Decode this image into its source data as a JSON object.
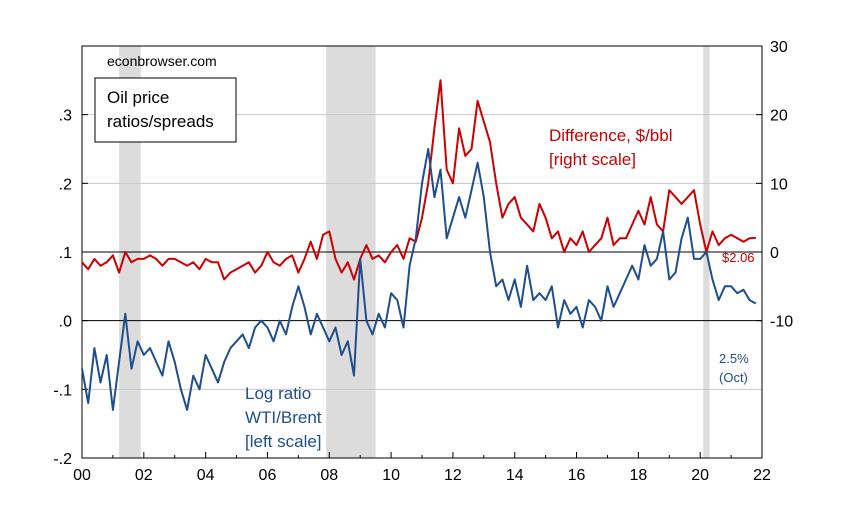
{
  "chart_data": {
    "type": "line",
    "title": "",
    "watermark": "econbrowser.com",
    "legend_box": {
      "line1": "Oil price",
      "line2": "ratios/spreads"
    },
    "x_range": [
      2000,
      2022
    ],
    "x_tick_labels": [
      "00",
      "02",
      "04",
      "06",
      "08",
      "10",
      "12",
      "14",
      "16",
      "18",
      "20",
      "22"
    ],
    "y_left": {
      "range": [
        -0.2,
        0.4
      ],
      "tick_labels": [
        "-.2",
        "-.1",
        ".0",
        ".1",
        ".2",
        ".3"
      ]
    },
    "y_right": {
      "range": [
        -30,
        30
      ],
      "tick_labels": [
        "-10",
        "0",
        "10",
        "20",
        "30"
      ]
    },
    "grid": true,
    "recessions": [
      [
        2001.2,
        2001.9
      ],
      [
        2007.9,
        2009.5
      ],
      [
        2020.1,
        2020.3
      ]
    ],
    "series": [
      {
        "name": "Difference, $/bbl",
        "label_lines": [
          "Difference, $/bbl",
          "[right scale]"
        ],
        "axis": "right",
        "color": "#cc0000",
        "x": [
          2000.0,
          2000.2,
          2000.4,
          2000.6,
          2000.8,
          2001.0,
          2001.2,
          2001.4,
          2001.6,
          2001.8,
          2002.0,
          2002.2,
          2002.4,
          2002.6,
          2002.8,
          2003.0,
          2003.2,
          2003.4,
          2003.6,
          2003.8,
          2004.0,
          2004.2,
          2004.4,
          2004.6,
          2004.8,
          2005.0,
          2005.2,
          2005.4,
          2005.6,
          2005.8,
          2006.0,
          2006.2,
          2006.4,
          2006.6,
          2006.8,
          2007.0,
          2007.2,
          2007.4,
          2007.6,
          2007.8,
          2008.0,
          2008.2,
          2008.4,
          2008.6,
          2008.8,
          2009.0,
          2009.2,
          2009.4,
          2009.6,
          2009.8,
          2010.0,
          2010.2,
          2010.4,
          2010.6,
          2010.8,
          2011.0,
          2011.2,
          2011.4,
          2011.6,
          2011.8,
          2012.0,
          2012.2,
          2012.4,
          2012.6,
          2012.8,
          2013.0,
          2013.2,
          2013.4,
          2013.6,
          2013.8,
          2014.0,
          2014.2,
          2014.4,
          2014.6,
          2014.8,
          2015.0,
          2015.2,
          2015.4,
          2015.6,
          2015.8,
          2016.0,
          2016.2,
          2016.4,
          2016.6,
          2016.8,
          2017.0,
          2017.2,
          2017.4,
          2017.6,
          2017.8,
          2018.0,
          2018.2,
          2018.4,
          2018.6,
          2018.8,
          2019.0,
          2019.2,
          2019.4,
          2019.6,
          2019.8,
          2020.0,
          2020.2,
          2020.4,
          2020.6,
          2020.8,
          2021.0,
          2021.2,
          2021.4,
          2021.6,
          2021.8
        ],
        "values": [
          -1.5,
          -2.5,
          -1,
          -2,
          -1.5,
          -0.5,
          -3,
          0,
          -1.5,
          -1,
          -1,
          -0.5,
          -1,
          -2,
          -1,
          -1,
          -1.5,
          -2,
          -1.5,
          -2.5,
          -1,
          -1.5,
          -1.5,
          -4,
          -3,
          -2.5,
          -2,
          -1.5,
          -3,
          -2,
          0,
          -1.5,
          -2,
          -1,
          -0.5,
          -3,
          -1,
          1.5,
          -1,
          2.5,
          3,
          -1,
          -3,
          -1.5,
          -4,
          -1,
          1,
          -1,
          -0.5,
          -1.5,
          0,
          1,
          -1,
          2,
          1.5,
          5,
          10,
          18,
          25,
          12,
          10,
          18,
          14,
          15,
          22,
          19,
          16,
          10,
          5,
          7,
          8,
          5,
          4,
          3,
          7,
          5,
          2,
          3,
          0,
          2,
          1,
          3,
          0,
          1,
          2,
          5,
          1,
          2,
          2,
          4,
          6,
          4,
          8,
          4,
          3,
          9,
          8,
          7,
          8,
          9,
          4,
          0,
          3,
          1,
          2,
          2.5,
          2,
          1.5,
          2,
          2.06
        ]
      },
      {
        "name": "Log ratio WTI/Brent",
        "label_lines": [
          "Log ratio",
          "WTI/Brent",
          "[left scale]"
        ],
        "axis": "left",
        "color": "#1f4e8c",
        "x": [
          2000.0,
          2000.2,
          2000.4,
          2000.6,
          2000.8,
          2001.0,
          2001.2,
          2001.4,
          2001.6,
          2001.8,
          2002.0,
          2002.2,
          2002.4,
          2002.6,
          2002.8,
          2003.0,
          2003.2,
          2003.4,
          2003.6,
          2003.8,
          2004.0,
          2004.2,
          2004.4,
          2004.6,
          2004.8,
          2005.0,
          2005.2,
          2005.4,
          2005.6,
          2005.8,
          2006.0,
          2006.2,
          2006.4,
          2006.6,
          2006.8,
          2007.0,
          2007.2,
          2007.4,
          2007.6,
          2007.8,
          2008.0,
          2008.2,
          2008.4,
          2008.6,
          2008.8,
          2009.0,
          2009.2,
          2009.4,
          2009.6,
          2009.8,
          2010.0,
          2010.2,
          2010.4,
          2010.6,
          2010.8,
          2011.0,
          2011.2,
          2011.4,
          2011.6,
          2011.8,
          2012.0,
          2012.2,
          2012.4,
          2012.6,
          2012.8,
          2013.0,
          2013.2,
          2013.4,
          2013.6,
          2013.8,
          2014.0,
          2014.2,
          2014.4,
          2014.6,
          2014.8,
          2015.0,
          2015.2,
          2015.4,
          2015.6,
          2015.8,
          2016.0,
          2016.2,
          2016.4,
          2016.6,
          2016.8,
          2017.0,
          2017.2,
          2017.4,
          2017.6,
          2017.8,
          2018.0,
          2018.2,
          2018.4,
          2018.6,
          2018.8,
          2019.0,
          2019.2,
          2019.4,
          2019.6,
          2019.8,
          2020.0,
          2020.2,
          2020.4,
          2020.6,
          2020.8,
          2021.0,
          2021.2,
          2021.4,
          2021.6,
          2021.8
        ],
        "values": [
          -0.07,
          -0.12,
          -0.04,
          -0.09,
          -0.05,
          -0.13,
          -0.06,
          0.01,
          -0.07,
          -0.03,
          -0.05,
          -0.04,
          -0.06,
          -0.08,
          -0.03,
          -0.06,
          -0.1,
          -0.13,
          -0.08,
          -0.1,
          -0.05,
          -0.07,
          -0.09,
          -0.06,
          -0.04,
          -0.03,
          -0.02,
          -0.04,
          -0.01,
          0.0,
          -0.01,
          -0.03,
          0.0,
          -0.02,
          0.02,
          0.05,
          0.02,
          -0.02,
          0.01,
          -0.01,
          -0.03,
          -0.01,
          -0.05,
          -0.03,
          -0.08,
          0.09,
          0.0,
          -0.02,
          0.01,
          -0.01,
          0.04,
          0.03,
          -0.01,
          0.08,
          0.12,
          0.2,
          0.25,
          0.18,
          0.22,
          0.12,
          0.15,
          0.18,
          0.15,
          0.19,
          0.23,
          0.18,
          0.1,
          0.05,
          0.06,
          0.03,
          0.06,
          0.02,
          0.08,
          0.03,
          0.04,
          0.03,
          0.05,
          -0.01,
          0.03,
          0.01,
          0.02,
          -0.01,
          0.03,
          0.02,
          0.0,
          0.05,
          0.02,
          0.04,
          0.06,
          0.08,
          0.06,
          0.11,
          0.08,
          0.09,
          0.13,
          0.06,
          0.07,
          0.12,
          0.15,
          0.09,
          0.09,
          0.1,
          0.06,
          0.03,
          0.05,
          0.05,
          0.04,
          0.045,
          0.03,
          0.025
        ]
      }
    ],
    "annotations": {
      "diff_end": "$2.06",
      "ratio_end_value": "2.5%",
      "ratio_end_date": "(Oct)"
    }
  }
}
